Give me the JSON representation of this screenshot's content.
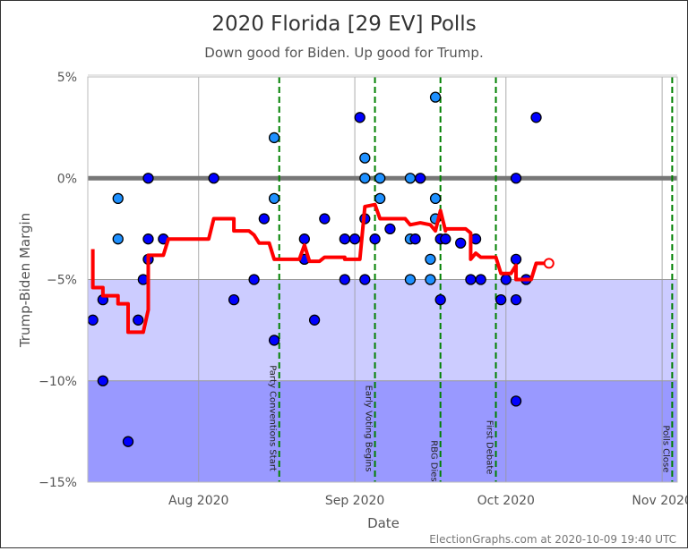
{
  "chart_data": {
    "type": "scatter",
    "title": "2020 Florida [29 EV] Polls",
    "subtitle": "Down good for Biden. Up good for Trump.",
    "xlabel": "Date",
    "ylabel": "Trump-Biden Margin",
    "footer": "ElectionGraphs.com at 2020-10-09 19:40 UTC",
    "ylim": [
      -15,
      5
    ],
    "yticks": [
      {
        "v": 5,
        "label": "5%"
      },
      {
        "v": 0,
        "label": "0%"
      },
      {
        "v": -5,
        "label": "-5%"
      },
      {
        "v": -10,
        "label": "-10%"
      },
      {
        "v": -15,
        "label": "-15%"
      }
    ],
    "xlim": [
      "2020-07-10",
      "2020-11-04"
    ],
    "xticks": [
      {
        "date": "2020-08-01",
        "label": "Aug 2020"
      },
      {
        "date": "2020-09-01",
        "label": "Sep 2020"
      },
      {
        "date": "2020-10-01",
        "label": "Oct 2020"
      },
      {
        "date": "2020-11-01",
        "label": "Nov 2020"
      }
    ],
    "grid": true,
    "bands": [
      {
        "from": 0,
        "to": -5,
        "color": "#ffffff"
      },
      {
        "from": -5,
        "to": -10,
        "color": "#ccccff"
      },
      {
        "from": -10,
        "to": -15,
        "color": "#9999ff"
      }
    ],
    "colors": {
      "poll": "#0000ff",
      "poll_light": "#1e90ff",
      "average": "#ff0000",
      "event": "#008000",
      "zero_line": "#777777",
      "top_line": "#ff9999"
    },
    "events": [
      {
        "date": "2020-08-17",
        "label": "Party Conventions Start"
      },
      {
        "date": "2020-09-05",
        "label": "Early Voting Begins"
      },
      {
        "date": "2020-09-18",
        "label": "RBG Dies"
      },
      {
        "date": "2020-09-29",
        "label": "First Debate"
      },
      {
        "date": "2020-11-03",
        "label": "Polls Close"
      }
    ],
    "polls": [
      {
        "date": "2020-07-11",
        "margin": -7,
        "light": false
      },
      {
        "date": "2020-07-13",
        "margin": -10,
        "light": false
      },
      {
        "date": "2020-07-13",
        "margin": -6,
        "light": false
      },
      {
        "date": "2020-07-16",
        "margin": -1,
        "light": true
      },
      {
        "date": "2020-07-16",
        "margin": -3,
        "light": true
      },
      {
        "date": "2020-07-18",
        "margin": -13,
        "light": false
      },
      {
        "date": "2020-07-20",
        "margin": -7,
        "light": false
      },
      {
        "date": "2020-07-21",
        "margin": -5,
        "light": false
      },
      {
        "date": "2020-07-22",
        "margin": -4,
        "light": false
      },
      {
        "date": "2020-07-22",
        "margin": -3,
        "light": false
      },
      {
        "date": "2020-07-22",
        "margin": 0,
        "light": false
      },
      {
        "date": "2020-07-25",
        "margin": -3,
        "light": false
      },
      {
        "date": "2020-08-04",
        "margin": 0,
        "light": false
      },
      {
        "date": "2020-08-08",
        "margin": -6,
        "light": false
      },
      {
        "date": "2020-08-12",
        "margin": -5,
        "light": false
      },
      {
        "date": "2020-08-14",
        "margin": -2,
        "light": false
      },
      {
        "date": "2020-08-16",
        "margin": 2,
        "light": true
      },
      {
        "date": "2020-08-16",
        "margin": -1,
        "light": true
      },
      {
        "date": "2020-08-16",
        "margin": -8,
        "light": false
      },
      {
        "date": "2020-08-22",
        "margin": -4,
        "light": false
      },
      {
        "date": "2020-08-22",
        "margin": -3,
        "light": false
      },
      {
        "date": "2020-08-24",
        "margin": -7,
        "light": false
      },
      {
        "date": "2020-08-26",
        "margin": -2,
        "light": false
      },
      {
        "date": "2020-08-30",
        "margin": -3,
        "light": false
      },
      {
        "date": "2020-08-30",
        "margin": -5,
        "light": false
      },
      {
        "date": "2020-09-01",
        "margin": -3,
        "light": false
      },
      {
        "date": "2020-09-02",
        "margin": 3,
        "light": false
      },
      {
        "date": "2020-09-03",
        "margin": -2,
        "light": false
      },
      {
        "date": "2020-09-03",
        "margin": -5,
        "light": false
      },
      {
        "date": "2020-09-03",
        "margin": 1,
        "light": true
      },
      {
        "date": "2020-09-03",
        "margin": 0,
        "light": true
      },
      {
        "date": "2020-09-05",
        "margin": -3,
        "light": false
      },
      {
        "date": "2020-09-06",
        "margin": 0,
        "light": true
      },
      {
        "date": "2020-09-06",
        "margin": -1,
        "light": true
      },
      {
        "date": "2020-09-08",
        "margin": -2.5,
        "light": false
      },
      {
        "date": "2020-09-12",
        "margin": 0,
        "light": true
      },
      {
        "date": "2020-09-12",
        "margin": -3,
        "light": true
      },
      {
        "date": "2020-09-12",
        "margin": -5,
        "light": true
      },
      {
        "date": "2020-09-13",
        "margin": -3,
        "light": false
      },
      {
        "date": "2020-09-14",
        "margin": 0,
        "light": false
      },
      {
        "date": "2020-09-16",
        "margin": -4,
        "light": true
      },
      {
        "date": "2020-09-16",
        "margin": -5,
        "light": true
      },
      {
        "date": "2020-09-17",
        "margin": -2,
        "light": true
      },
      {
        "date": "2020-09-17",
        "margin": 4,
        "light": true
      },
      {
        "date": "2020-09-17",
        "margin": -1,
        "light": true
      },
      {
        "date": "2020-09-18",
        "margin": -6,
        "light": false
      },
      {
        "date": "2020-09-18",
        "margin": -3,
        "light": false
      },
      {
        "date": "2020-09-19",
        "margin": -3,
        "light": false
      },
      {
        "date": "2020-09-22",
        "margin": -3.2,
        "light": false
      },
      {
        "date": "2020-09-24",
        "margin": -5,
        "light": false
      },
      {
        "date": "2020-09-25",
        "margin": -3,
        "light": false
      },
      {
        "date": "2020-09-26",
        "margin": -5,
        "light": false
      },
      {
        "date": "2020-09-30",
        "margin": -6,
        "light": false
      },
      {
        "date": "2020-10-01",
        "margin": -5,
        "light": false
      },
      {
        "date": "2020-10-03",
        "margin": 0,
        "light": false
      },
      {
        "date": "2020-10-03",
        "margin": -6,
        "light": false
      },
      {
        "date": "2020-10-03",
        "margin": -4,
        "light": false
      },
      {
        "date": "2020-10-03",
        "margin": -11,
        "light": false
      },
      {
        "date": "2020-10-05",
        "margin": -5,
        "light": false
      },
      {
        "date": "2020-10-07",
        "margin": 3,
        "light": false
      }
    ],
    "average": [
      [
        "2020-07-11",
        -3.5
      ],
      [
        "2020-07-11",
        -5.4
      ],
      [
        "2020-07-13",
        -5.4
      ],
      [
        "2020-07-13",
        -5.8
      ],
      [
        "2020-07-16",
        -5.8
      ],
      [
        "2020-07-16",
        -6.2
      ],
      [
        "2020-07-18",
        -6.2
      ],
      [
        "2020-07-18",
        -7.6
      ],
      [
        "2020-07-21",
        -7.6
      ],
      [
        "2020-07-22",
        -6.5
      ],
      [
        "2020-07-22",
        -3.8
      ],
      [
        "2020-07-25",
        -3.8
      ],
      [
        "2020-07-26",
        -3
      ],
      [
        "2020-08-03",
        -3
      ],
      [
        "2020-08-04",
        -2
      ],
      [
        "2020-08-08",
        -2
      ],
      [
        "2020-08-08",
        -2.6
      ],
      [
        "2020-08-11",
        -2.6
      ],
      [
        "2020-08-12",
        -2.8
      ],
      [
        "2020-08-13",
        -3.2
      ],
      [
        "2020-08-15",
        -3.2
      ],
      [
        "2020-08-16",
        -4
      ],
      [
        "2020-08-21",
        -4
      ],
      [
        "2020-08-22",
        -3.3
      ],
      [
        "2020-08-23",
        -4.1
      ],
      [
        "2020-08-25",
        -4.1
      ],
      [
        "2020-08-26",
        -3.9
      ],
      [
        "2020-08-30",
        -3.9
      ],
      [
        "2020-08-30",
        -4
      ],
      [
        "2020-09-02",
        -4
      ],
      [
        "2020-09-03",
        -1.4
      ],
      [
        "2020-09-05",
        -1.3
      ],
      [
        "2020-09-06",
        -2
      ],
      [
        "2020-09-11",
        -2
      ],
      [
        "2020-09-12",
        -2.3
      ],
      [
        "2020-09-14",
        -2.2
      ],
      [
        "2020-09-16",
        -2.3
      ],
      [
        "2020-09-17",
        -2.6
      ],
      [
        "2020-09-18",
        -1.6
      ],
      [
        "2020-09-19",
        -2.6
      ],
      [
        "2020-09-19",
        -2.5
      ],
      [
        "2020-09-23",
        -2.5
      ],
      [
        "2020-09-24",
        -2.7
      ],
      [
        "2020-09-24",
        -4
      ],
      [
        "2020-09-25",
        -3.7
      ],
      [
        "2020-09-26",
        -3.9
      ],
      [
        "2020-09-29",
        -3.9
      ],
      [
        "2020-09-30",
        -4.7
      ],
      [
        "2020-10-02",
        -4.7
      ],
      [
        "2020-10-03",
        -4.3
      ],
      [
        "2020-10-03",
        -5
      ],
      [
        "2020-10-06",
        -5
      ],
      [
        "2020-10-07",
        -4.2
      ],
      [
        "2020-10-09",
        -4.2
      ]
    ],
    "current_average": {
      "date": "2020-10-09",
      "margin": -4.2
    }
  }
}
